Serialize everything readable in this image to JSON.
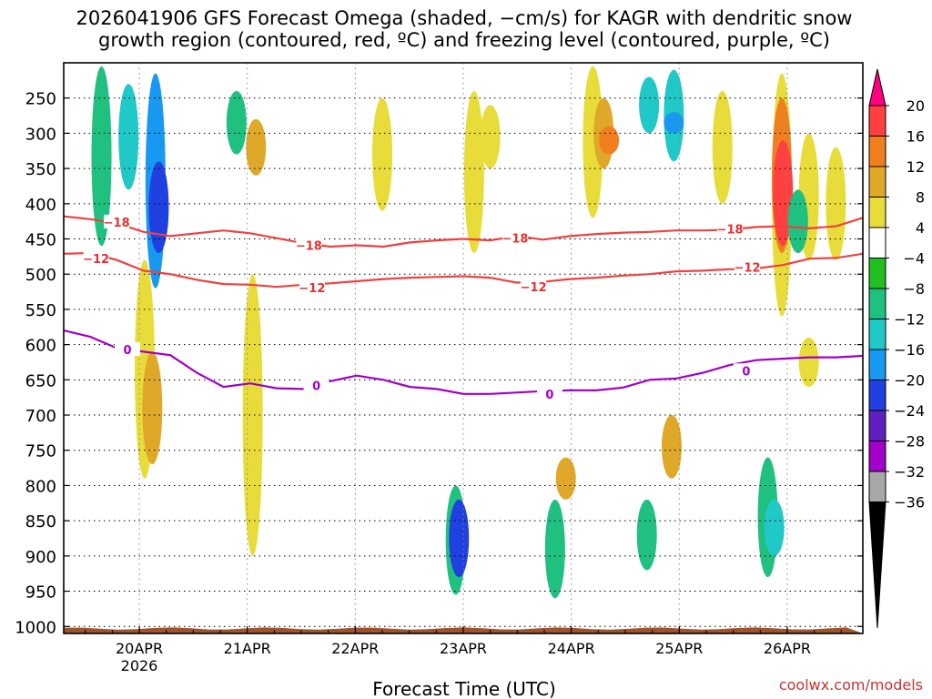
{
  "chart_data": {
    "type": "heatmap",
    "title_line1": "2026041906 GFS Forecast Omega (shaded, −cm/s) for KAGR with dendritic snow",
    "title_line2": "growth region (contoured, red, ºC) and freezing level (contoured, purple, ºC)",
    "xlabel": "Forecast Time (UTC)",
    "credit": "coolwx.com/models",
    "year_label": "2026",
    "x_ticks": [
      "20APR",
      "21APR",
      "22APR",
      "23APR",
      "24APR",
      "25APR",
      "26APR"
    ],
    "x_range_days": [
      -0.7,
      6.7
    ],
    "y_ticks": [
      "250",
      "300",
      "350",
      "400",
      "450",
      "500",
      "550",
      "600",
      "650",
      "700",
      "750",
      "800",
      "850",
      "900",
      "950",
      "1000"
    ],
    "y_range_hpa": [
      200,
      1010
    ],
    "colorbar": {
      "levels": [
        "20",
        "16",
        "12",
        "8",
        "4",
        "−4",
        "−8",
        "−12",
        "−16",
        "−20",
        "−24",
        "−28",
        "−32",
        "−36"
      ],
      "colors": [
        "#ff0080",
        "#ff4040",
        "#f07f20",
        "#e0a828",
        "#e8dc3a",
        "#ffffff",
        "#20c020",
        "#20c080",
        "#20c8c8",
        "#1898f0",
        "#2040e0",
        "#6020c0",
        "#a000c8",
        "#a8a8a8",
        "#000000"
      ]
    },
    "contours": [
      {
        "label": "−18",
        "color": "#f04040",
        "hpa": [
          418,
          422,
          428,
          440,
          446,
          442,
          438,
          442,
          449,
          456,
          461,
          459,
          461,
          455,
          452,
          450,
          452,
          446,
          451,
          446,
          443,
          441,
          440,
          438,
          438,
          437,
          433,
          432,
          435,
          432,
          420
        ]
      },
      {
        "label": "−12",
        "color": "#f04040",
        "hpa": [
          471,
          470,
          480,
          495,
          500,
          508,
          514,
          515,
          518,
          515,
          513,
          510,
          507,
          505,
          504,
          503,
          505,
          512,
          511,
          507,
          505,
          502,
          500,
          496,
          495,
          493,
          492,
          487,
          478,
          477,
          471
        ]
      },
      {
        "label": "0",
        "color": "#a000c8",
        "hpa": [
          580,
          589,
          605,
          610,
          615,
          640,
          660,
          655,
          662,
          663,
          652,
          644,
          650,
          660,
          663,
          670,
          670,
          668,
          666,
          665,
          665,
          661,
          650,
          648,
          640,
          629,
          622,
          620,
          618,
          618,
          616
        ]
      }
    ],
    "contour_labels": [
      {
        "text": "−18",
        "day": -0.21,
        "hpa": 426
      },
      {
        "text": "−18",
        "day": 1.57,
        "hpa": 459
      },
      {
        "text": "−18",
        "day": 3.48,
        "hpa": 449
      },
      {
        "text": "−18",
        "day": 5.47,
        "hpa": 436
      },
      {
        "text": "−12",
        "day": -0.4,
        "hpa": 478
      },
      {
        "text": "−12",
        "day": 1.6,
        "hpa": 519
      },
      {
        "text": "−12",
        "day": 3.65,
        "hpa": 518
      },
      {
        "text": "−12",
        "day": 5.63,
        "hpa": 490
      },
      {
        "text": "0",
        "day": -0.11,
        "hpa": 607
      },
      {
        "text": "0",
        "day": 1.64,
        "hpa": 658
      },
      {
        "text": "0",
        "day": 3.8,
        "hpa": 670
      },
      {
        "text": "0",
        "day": 5.62,
        "hpa": 637
      }
    ],
    "omega_cells": [
      {
        "day": -0.35,
        "p1": 205,
        "p2": 460,
        "v": -8
      },
      {
        "day": -0.1,
        "p1": 230,
        "p2": 380,
        "v": -12
      },
      {
        "day": 0.15,
        "p1": 215,
        "p2": 520,
        "v": -16
      },
      {
        "day": 0.18,
        "p1": 340,
        "p2": 470,
        "v": -20
      },
      {
        "day": 0.05,
        "p1": 480,
        "p2": 790,
        "v": 6
      },
      {
        "day": 0.12,
        "p1": 610,
        "p2": 770,
        "v": 10
      },
      {
        "day": 0.9,
        "p1": 240,
        "p2": 330,
        "v": -8
      },
      {
        "day": 1.08,
        "p1": 280,
        "p2": 360,
        "v": 10
      },
      {
        "day": 1.05,
        "p1": 500,
        "p2": 900,
        "v": 5
      },
      {
        "day": 2.25,
        "p1": 250,
        "p2": 410,
        "v": 6
      },
      {
        "day": 2.93,
        "p1": 800,
        "p2": 955,
        "v": -10
      },
      {
        "day": 2.96,
        "p1": 820,
        "p2": 930,
        "v": -20
      },
      {
        "day": 3.1,
        "p1": 240,
        "p2": 470,
        "v": 6
      },
      {
        "day": 3.25,
        "p1": 260,
        "p2": 350,
        "v": 8
      },
      {
        "day": 3.85,
        "p1": 820,
        "p2": 960,
        "v": -8
      },
      {
        "day": 3.95,
        "p1": 760,
        "p2": 820,
        "v": 9
      },
      {
        "day": 4.2,
        "p1": 205,
        "p2": 420,
        "v": 6
      },
      {
        "day": 4.3,
        "p1": 250,
        "p2": 350,
        "v": 12
      },
      {
        "day": 4.35,
        "p1": 290,
        "p2": 330,
        "v": 16
      },
      {
        "day": 4.72,
        "p1": 220,
        "p2": 300,
        "v": -14
      },
      {
        "day": 4.95,
        "p1": 210,
        "p2": 340,
        "v": -12
      },
      {
        "day": 4.95,
        "p1": 270,
        "p2": 300,
        "v": -18
      },
      {
        "day": 4.7,
        "p1": 820,
        "p2": 920,
        "v": -8
      },
      {
        "day": 4.93,
        "p1": 700,
        "p2": 790,
        "v": 10
      },
      {
        "day": 5.4,
        "p1": 240,
        "p2": 400,
        "v": 5
      },
      {
        "day": 5.82,
        "p1": 760,
        "p2": 930,
        "v": -8
      },
      {
        "day": 5.88,
        "p1": 820,
        "p2": 900,
        "v": -14
      },
      {
        "day": 5.95,
        "p1": 215,
        "p2": 560,
        "v": 8
      },
      {
        "day": 5.95,
        "p1": 250,
        "p2": 470,
        "v": 14
      },
      {
        "day": 5.96,
        "p1": 310,
        "p2": 460,
        "v": 18
      },
      {
        "day": 6.2,
        "p1": 300,
        "p2": 480,
        "v": 5
      },
      {
        "day": 6.45,
        "p1": 320,
        "p2": 480,
        "v": 6
      },
      {
        "day": 6.1,
        "p1": 380,
        "p2": 470,
        "v": -8
      },
      {
        "day": 6.2,
        "p1": 590,
        "p2": 660,
        "v": 5
      }
    ]
  }
}
